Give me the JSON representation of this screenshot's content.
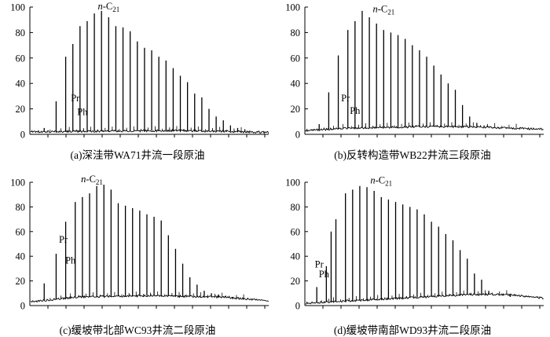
{
  "chart_data": [
    {
      "type": "line",
      "caption": "(a)深洼带WA71井流一段原油",
      "ylim": [
        0,
        100
      ],
      "yticks": [
        0,
        20,
        40,
        60,
        80,
        100
      ],
      "x_peaks": [
        6,
        11,
        15,
        18,
        21,
        24,
        27,
        30,
        33,
        36,
        39,
        42,
        45,
        48,
        51,
        54,
        57,
        60,
        63,
        66,
        69,
        72,
        75,
        78,
        81,
        84,
        87,
        90
      ],
      "peak_values": [
        5,
        26,
        61,
        71,
        85,
        89,
        95,
        97,
        92,
        85,
        84,
        81,
        73,
        68,
        66,
        61,
        58,
        52,
        46,
        41,
        32,
        29,
        20,
        14,
        11,
        7,
        5,
        4
      ],
      "baseline": [
        [
          0,
          2
        ],
        [
          30,
          2.5
        ],
        [
          60,
          3
        ],
        [
          90,
          2
        ],
        [
          100,
          1.5
        ]
      ],
      "annotations": [
        {
          "text": "n-C21",
          "x": 33,
          "y": 98
        },
        {
          "text": "Pr",
          "x": 19,
          "y": 26
        },
        {
          "text": "Ph",
          "x": 22,
          "y": 15
        }
      ]
    },
    {
      "type": "line",
      "caption": "(b)反转构造带WB22井流三段原油",
      "ylim": [
        0,
        100
      ],
      "yticks": [
        0,
        20,
        40,
        60,
        80,
        100
      ],
      "x_peaks": [
        6,
        10,
        14,
        18,
        21,
        24,
        27,
        30,
        33,
        36,
        39,
        42,
        45,
        48,
        51,
        54,
        57,
        60,
        63,
        66,
        69,
        72,
        75,
        78,
        81,
        84,
        87,
        90
      ],
      "peak_values": [
        8,
        33,
        62,
        82,
        89,
        97,
        92,
        87,
        82,
        80,
        78,
        75,
        70,
        66,
        61,
        54,
        47,
        40,
        35,
        23,
        14,
        9,
        7,
        6,
        5,
        5,
        4,
        4
      ],
      "baseline": [
        [
          0,
          3
        ],
        [
          20,
          5
        ],
        [
          50,
          6
        ],
        [
          70,
          6
        ],
        [
          100,
          4
        ]
      ],
      "annotations": [
        {
          "text": "n-C21",
          "x": 33,
          "y": 96
        },
        {
          "text": "Pr",
          "x": 17,
          "y": 26
        },
        {
          "text": "Ph",
          "x": 21,
          "y": 16
        }
      ]
    },
    {
      "type": "line",
      "caption": "(c)缓坡带北部WC93井流二段原油",
      "ylim": [
        0,
        100
      ],
      "yticks": [
        0,
        20,
        40,
        60,
        80,
        100
      ],
      "x_peaks": [
        6,
        11,
        15,
        19,
        22,
        25,
        28,
        31,
        34,
        37,
        40,
        43,
        46,
        49,
        52,
        55,
        58,
        61,
        64,
        67,
        70,
        73,
        76,
        79,
        82,
        85,
        88,
        91
      ],
      "peak_values": [
        18,
        42,
        68,
        84,
        88,
        91,
        97,
        98,
        94,
        83,
        81,
        79,
        77,
        74,
        72,
        69,
        57,
        46,
        34,
        23,
        17,
        12,
        10,
        9,
        8,
        7,
        6,
        5
      ],
      "baseline": [
        [
          0,
          3
        ],
        [
          20,
          7
        ],
        [
          50,
          8
        ],
        [
          80,
          7
        ],
        [
          100,
          4
        ]
      ],
      "annotations": [
        {
          "text": "n-C21",
          "x": 26,
          "y": 100
        },
        {
          "text": "Pr",
          "x": 14,
          "y": 51
        },
        {
          "text": "Ph",
          "x": 17,
          "y": 34
        }
      ]
    },
    {
      "type": "line",
      "caption": "(d)缓坡带南部WD93井流二段原油",
      "ylim": [
        0,
        100
      ],
      "yticks": [
        0,
        20,
        40,
        60,
        80,
        100
      ],
      "x_peaks": [
        5,
        9,
        11,
        13,
        17,
        20,
        23,
        26,
        29,
        32,
        35,
        38,
        41,
        44,
        47,
        50,
        53,
        56,
        59,
        62,
        65,
        68,
        71,
        74,
        77,
        80,
        83,
        86
      ],
      "peak_values": [
        15,
        32,
        60,
        70,
        91,
        94,
        97,
        96,
        93,
        88,
        86,
        84,
        82,
        80,
        78,
        74,
        68,
        64,
        58,
        53,
        45,
        38,
        26,
        21,
        12,
        9,
        8,
        7
      ],
      "baseline": [
        [
          0,
          2
        ],
        [
          20,
          4
        ],
        [
          50,
          7
        ],
        [
          70,
          9
        ],
        [
          85,
          9
        ],
        [
          100,
          6
        ]
      ],
      "annotations": [
        {
          "text": "n-C21",
          "x": 32,
          "y": 99
        },
        {
          "text": "Pr",
          "x": 6,
          "y": 31
        },
        {
          "text": "Ph",
          "x": 8,
          "y": 23
        }
      ]
    }
  ]
}
